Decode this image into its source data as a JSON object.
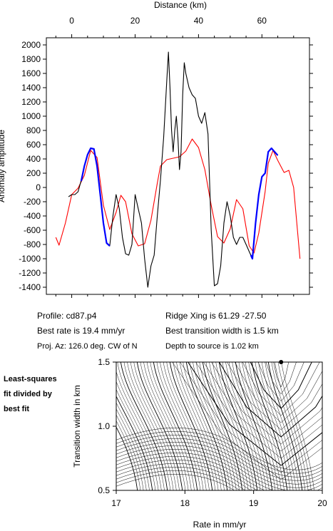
{
  "chart_data": [
    {
      "type": "line",
      "xlabel": "Distance (km)",
      "ylabel": "Anomaly amplitude",
      "xlim": [
        -8,
        75
      ],
      "ylim": [
        -1500,
        2100
      ],
      "xticks": [
        0,
        20,
        40,
        60
      ],
      "yticks": [
        -1400,
        -1200,
        -1000,
        -800,
        -600,
        -400,
        -200,
        0,
        200,
        400,
        600,
        800,
        1000,
        1200,
        1400,
        1600,
        1800,
        2000
      ],
      "colors": {
        "observed": "#000000",
        "model": "#ff0000",
        "fit_window": "#0000ff"
      },
      "series": [
        {
          "color": "red",
          "x": [
            -5,
            -4,
            -2,
            0,
            2,
            4,
            6,
            8,
            10,
            12,
            14,
            15.5,
            17,
            19,
            21,
            23,
            25,
            27,
            28,
            30,
            32,
            34,
            36,
            38,
            40,
            42,
            44,
            46,
            48,
            50,
            52,
            54,
            56,
            57.5,
            59,
            61,
            62,
            63.5,
            65,
            67,
            68.5,
            70,
            72
          ],
          "y": [
            -700,
            -810,
            -500,
            -100,
            -10,
            170,
            520,
            420,
            -250,
            -590,
            -350,
            -110,
            -200,
            -650,
            -820,
            -790,
            -460,
            60,
            300,
            390,
            410,
            430,
            510,
            680,
            560,
            250,
            -250,
            -690,
            -780,
            -580,
            -170,
            -300,
            -820,
            -920,
            -640,
            -60,
            340,
            520,
            380,
            210,
            240,
            0,
            -1000
          ]
        },
        {
          "color": "black",
          "x": [
            -1,
            0,
            1,
            2,
            3,
            4,
            5,
            6,
            7,
            8,
            9,
            10,
            11,
            12,
            13,
            14,
            15,
            16,
            17,
            18,
            19,
            20,
            21,
            22,
            23,
            24,
            25,
            26,
            27,
            28,
            29,
            30,
            30.5,
            31,
            31.5,
            32,
            32.5,
            33,
            33.5,
            34,
            34.5,
            35,
            35.5,
            36,
            37,
            38,
            39,
            40,
            41,
            42,
            43,
            44,
            45,
            46,
            47,
            48,
            49,
            50,
            51,
            52,
            53,
            54,
            55,
            56,
            57,
            58,
            59,
            60,
            61,
            62,
            63,
            64,
            65
          ],
          "y": [
            -130,
            -100,
            -100,
            -60,
            100,
            300,
            450,
            550,
            540,
            300,
            -100,
            -500,
            -780,
            -820,
            -400,
            -100,
            -300,
            -700,
            -930,
            -950,
            -800,
            -100,
            -300,
            -500,
            -1000,
            -1400,
            -1100,
            -950,
            -400,
            100,
            700,
            1500,
            1900,
            1400,
            800,
            500,
            800,
            1000,
            700,
            250,
            500,
            1300,
            1750,
            1600,
            1400,
            1300,
            1250,
            1000,
            900,
            1050,
            750,
            -600,
            -1380,
            -1350,
            -1100,
            -500,
            -200,
            -400,
            -700,
            -800,
            -700,
            -700,
            -800,
            -900,
            -1000,
            -500,
            -100,
            150,
            200,
            500,
            550,
            500,
            450
          ]
        },
        {
          "color": "blue",
          "x": [
            3,
            4,
            5,
            6,
            7,
            8,
            9,
            10,
            11,
            12
          ],
          "y": [
            90,
            300,
            460,
            550,
            540,
            300,
            -100,
            -500,
            -780,
            -820
          ]
        },
        {
          "color": "blue",
          "x": [
            56.5,
            57,
            58,
            59,
            60,
            61,
            62,
            63,
            64,
            65
          ],
          "y": [
            -950,
            -1000,
            -500,
            -100,
            150,
            200,
            500,
            550,
            500,
            450
          ]
        }
      ]
    },
    {
      "type": "contour",
      "xlabel": "Rate in mm/yr",
      "ylabel": "Transition width in km",
      "xlim": [
        17,
        20
      ],
      "ylim": [
        0.5,
        1.5
      ],
      "xticks": [
        17,
        18,
        19,
        20
      ],
      "yticks": [
        0.5,
        1.0,
        1.5
      ],
      "best_fit_marker": {
        "rate": 19.4,
        "width": 1.5
      }
    }
  ],
  "labels": {
    "xticks_top": [
      "0",
      "20",
      "40",
      "60"
    ],
    "yticks": [
      "-1400",
      "-1200",
      "-1000",
      "-800",
      "-600",
      "-400",
      "-200",
      "0",
      "200",
      "400",
      "600",
      "800",
      "1000",
      "1200",
      "1400",
      "1600",
      "1800",
      "2000"
    ],
    "contour_xticks": [
      "17",
      "18",
      "19",
      "20"
    ],
    "contour_yticks": [
      "0.5",
      "1.0",
      "1.5"
    ]
  },
  "info": {
    "profile": "Profile: cd87.p4",
    "ridge": "Ridge Xing is 61.29 -27.50",
    "best_rate": "Best rate is 19.4 mm/yr",
    "best_width": "Best transition width is 1.5 km",
    "azimuth": "Proj. Az: 126.0 deg. CW of N",
    "depth": "Depth to source is    1.02 km"
  },
  "side_note": {
    "line1": "Least-squares",
    "line2": "fit divided by",
    "line3": "best fit"
  }
}
